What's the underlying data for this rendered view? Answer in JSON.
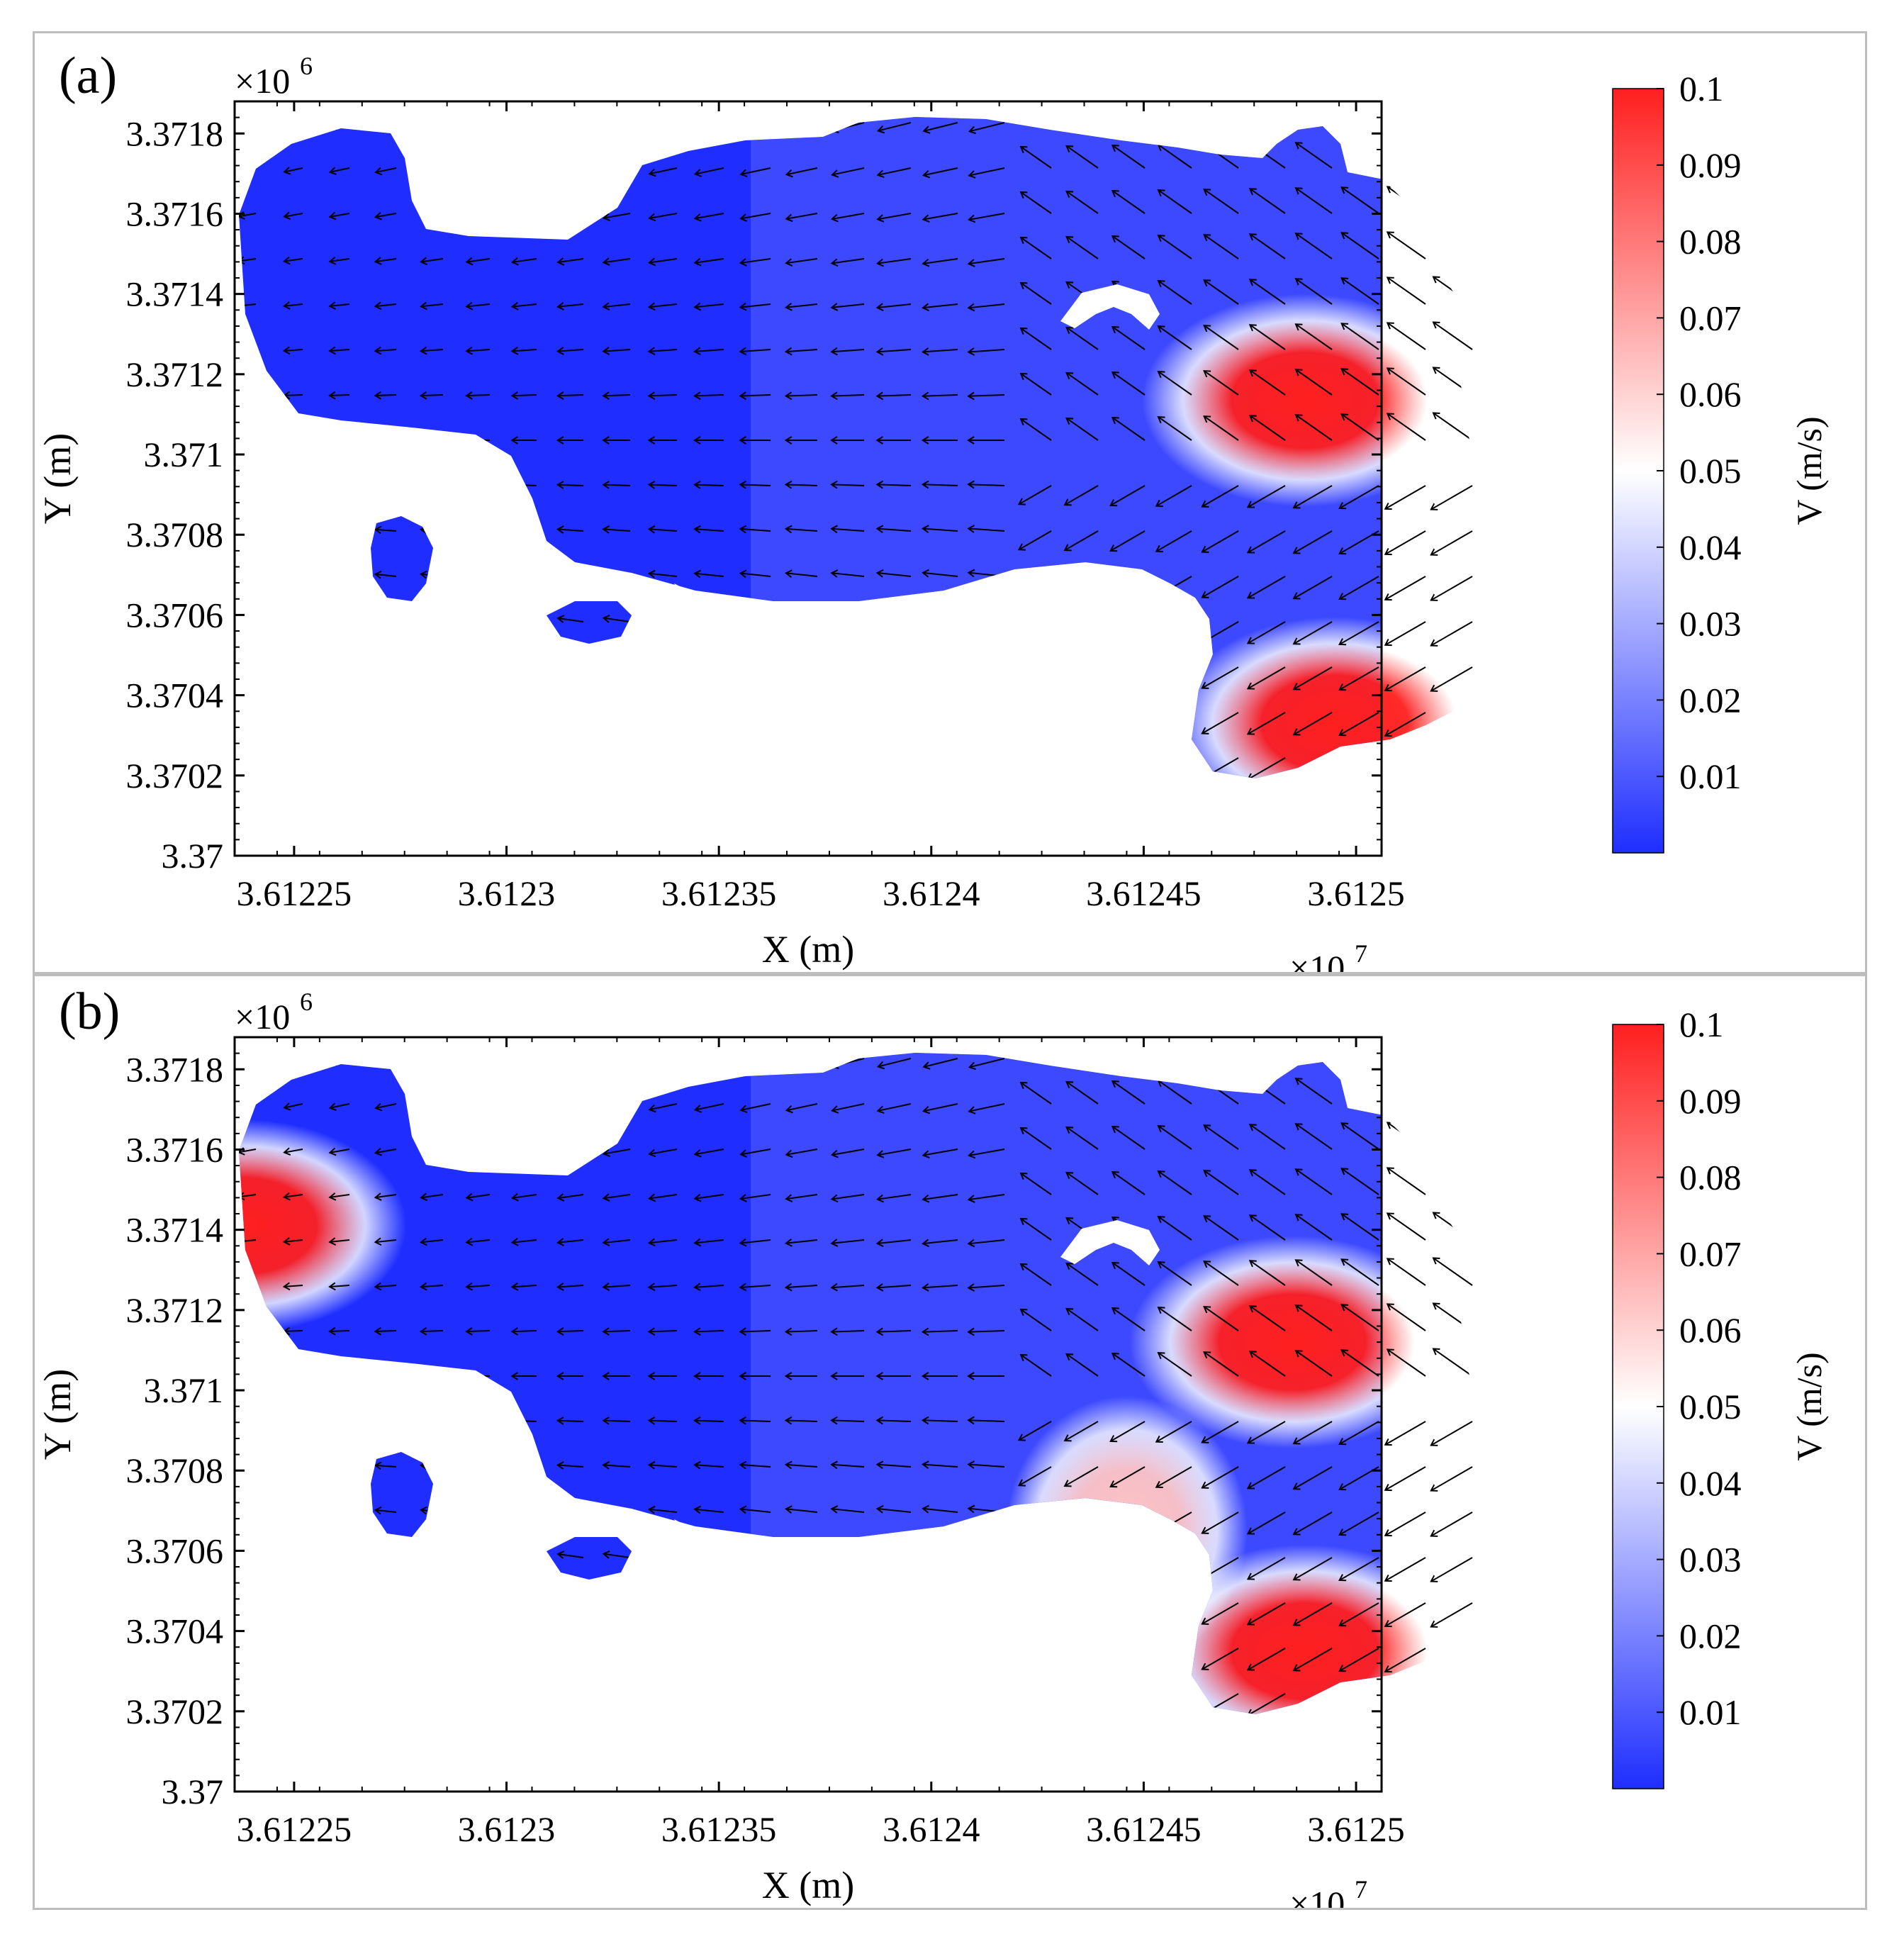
{
  "chart_data": [
    {
      "type": "heatmap",
      "panel_label": "(a)",
      "xlabel": "X (m)",
      "ylabel": "Y (m)",
      "x_multiplier": "×10",
      "x_exponent": "7",
      "y_multiplier": "×10",
      "y_exponent": "6",
      "x_ticks": [
        "3.61225",
        "3.6123",
        "3.61235",
        "3.6124",
        "3.61245",
        "3.6125"
      ],
      "y_ticks": [
        "3.37",
        "3.3702",
        "3.3704",
        "3.3706",
        "3.3708",
        "3.371",
        "3.3712",
        "3.3714",
        "3.3716",
        "3.3718"
      ],
      "xlim": [
        3.612236,
        3.612506
      ],
      "ylim": [
        3.37,
        3.37188
      ],
      "colorbar": {
        "label": "V (m/s)",
        "ticks": [
          "0.01",
          "0.02",
          "0.03",
          "0.04",
          "0.05",
          "0.06",
          "0.07",
          "0.08",
          "0.09",
          "0.1"
        ],
        "range": [
          0.0,
          0.1
        ],
        "colors": [
          "#1f2eff",
          "#ffffff",
          "#ff1f1f"
        ]
      },
      "high_velocity_zones": [
        {
          "x": 3.612488,
          "y": 3.371135,
          "v": 0.1
        },
        {
          "x": 3.612495,
          "y": 3.37033,
          "v": 0.1
        }
      ],
      "grid": false,
      "legend": "none"
    },
    {
      "type": "heatmap",
      "panel_label": "(b)",
      "xlabel": "X (m)",
      "ylabel": "Y (m)",
      "x_multiplier": "×10",
      "x_exponent": "7",
      "y_multiplier": "×10",
      "y_exponent": "6",
      "x_ticks": [
        "3.61225",
        "3.6123",
        "3.61235",
        "3.6124",
        "3.61245",
        "3.6125"
      ],
      "y_ticks": [
        "3.37",
        "3.3702",
        "3.3704",
        "3.3706",
        "3.3708",
        "3.371",
        "3.3712",
        "3.3714",
        "3.3716",
        "3.3718"
      ],
      "xlim": [
        3.612236,
        3.612506
      ],
      "ylim": [
        3.37,
        3.37188
      ],
      "colorbar": {
        "label": "V (m/s)",
        "ticks": [
          "0.01",
          "0.02",
          "0.03",
          "0.04",
          "0.05",
          "0.06",
          "0.07",
          "0.08",
          "0.09",
          "0.1"
        ],
        "range": [
          0.0,
          0.1
        ],
        "colors": [
          "#1f2eff",
          "#ffffff",
          "#ff1f1f"
        ]
      },
      "high_velocity_zones": [
        {
          "x": 3.612485,
          "y": 3.37112,
          "v": 0.1
        },
        {
          "x": 3.612488,
          "y": 3.37035,
          "v": 0.1
        },
        {
          "x": 3.612446,
          "y": 3.37065,
          "v": 0.06
        },
        {
          "x": 3.612238,
          "y": 3.37141,
          "v": 0.1
        }
      ],
      "grid": false,
      "legend": "none"
    }
  ]
}
